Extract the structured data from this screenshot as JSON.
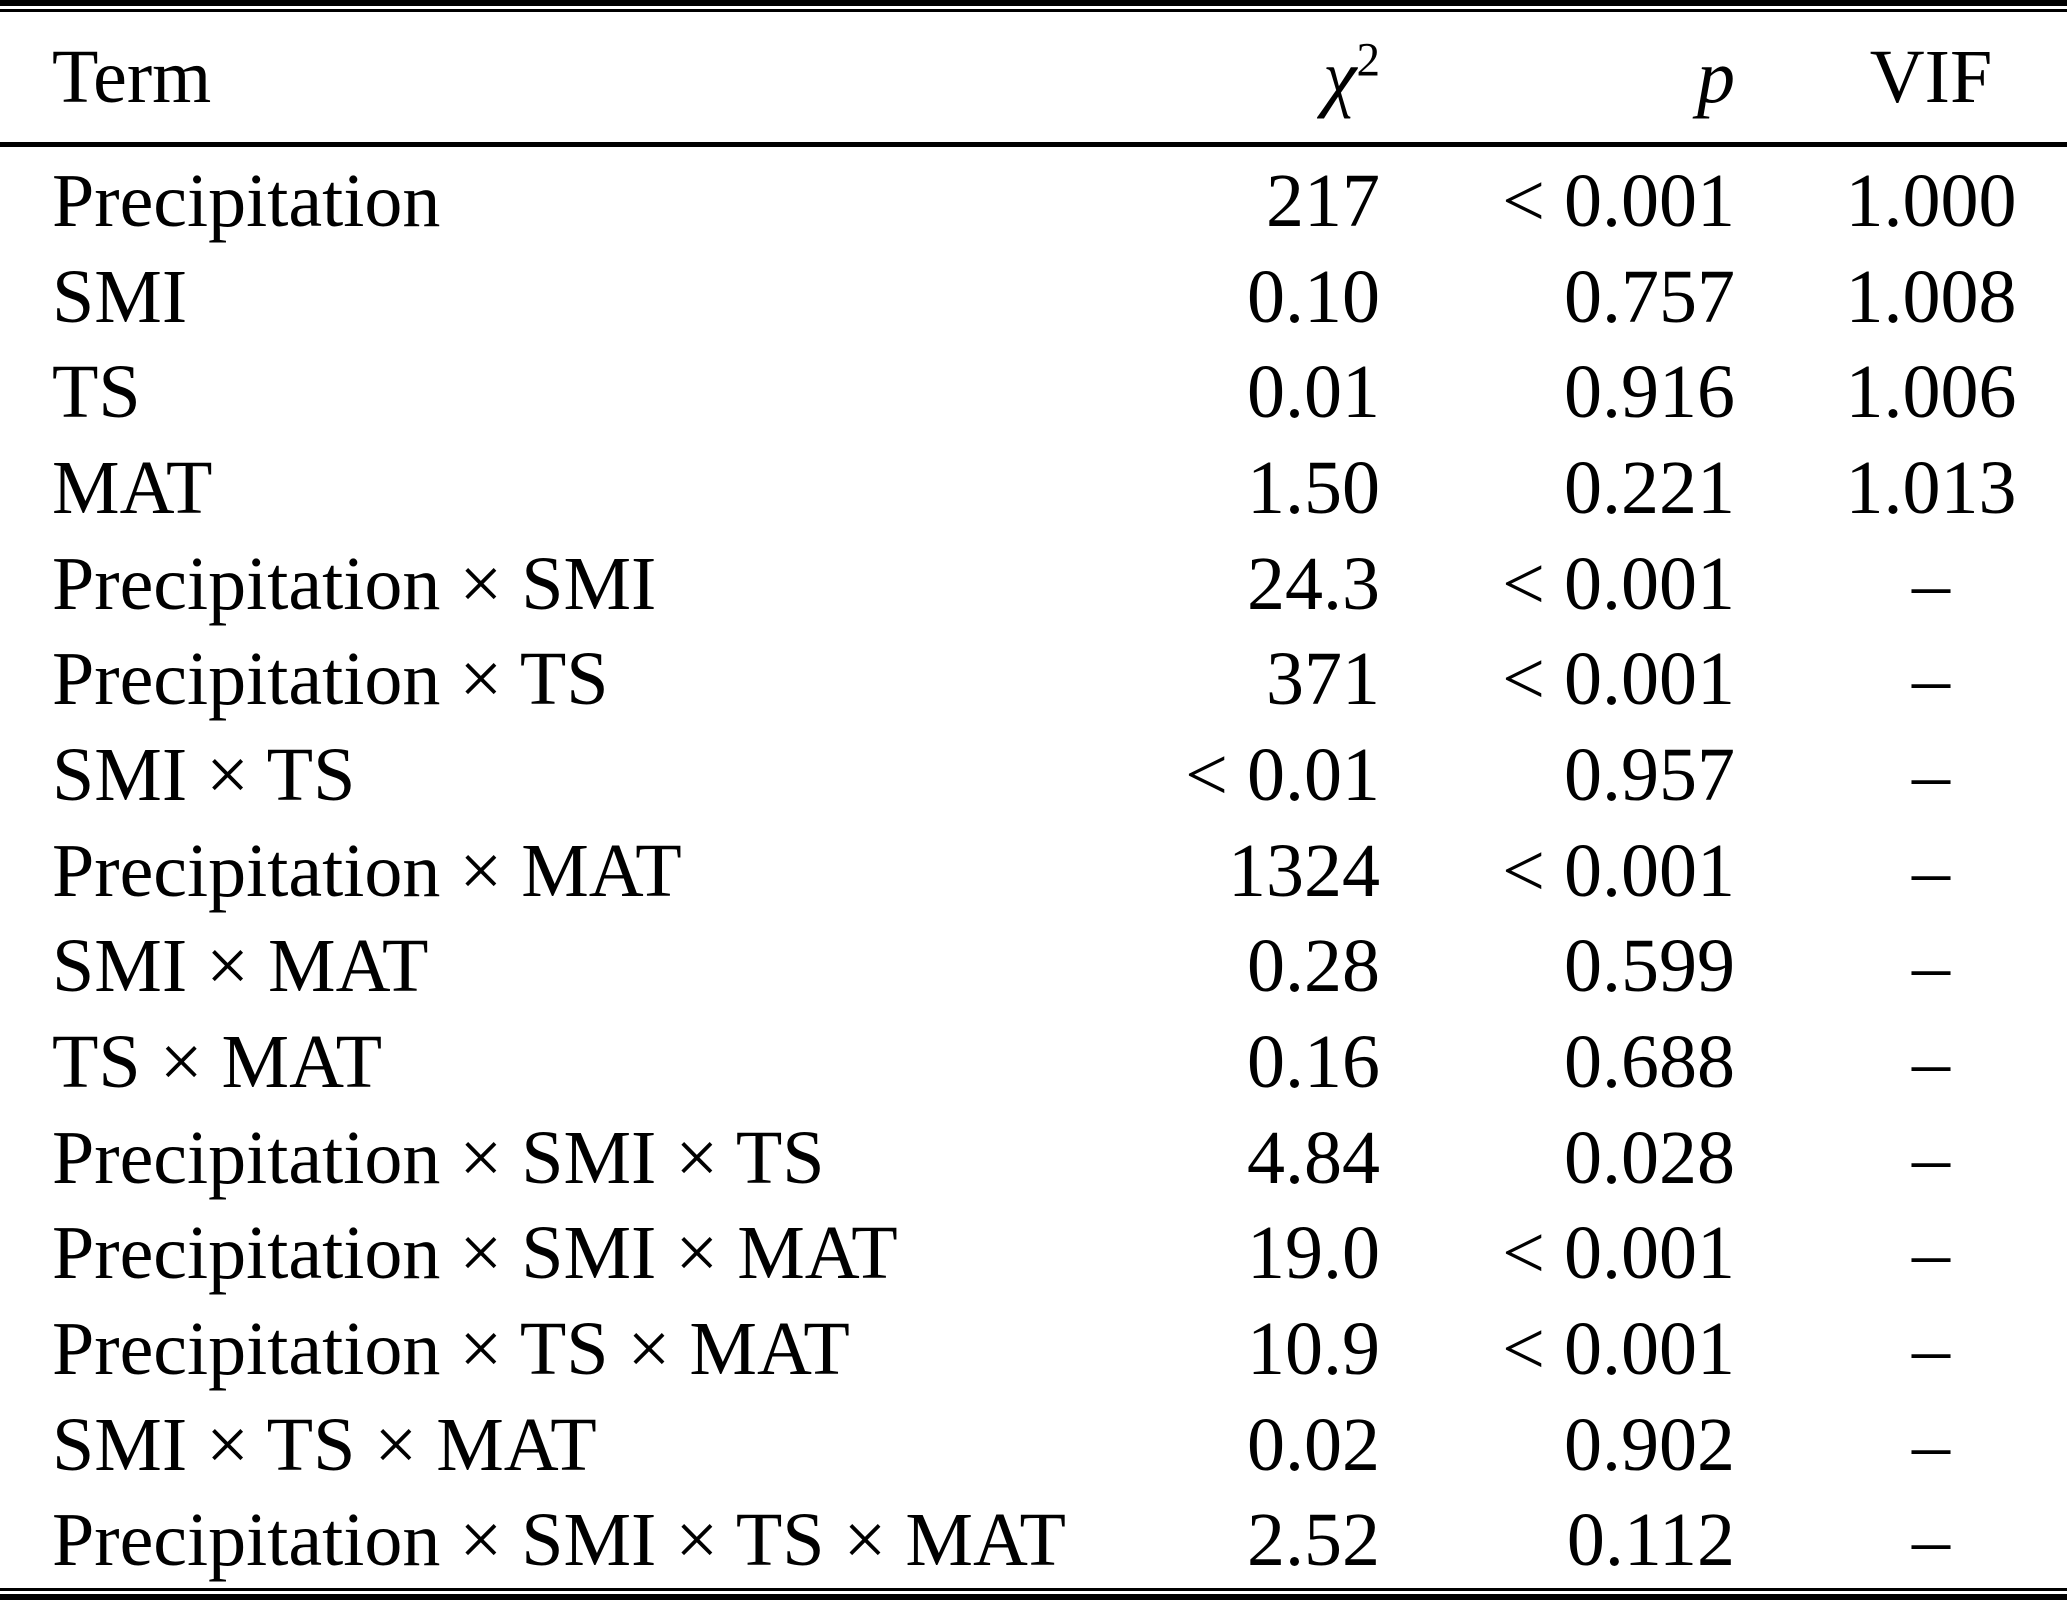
{
  "table": {
    "title_semantic": "ANOVA terms with chi-square, p-value and VIF",
    "columns": {
      "term": "Term",
      "chi_base": "χ",
      "chi_sup": "2",
      "p": "p",
      "vif": "VIF"
    },
    "rows": [
      {
        "term": "Precipitation",
        "chi2": "217",
        "p": "< 0.001",
        "vif": "1.000"
      },
      {
        "term": "SMI",
        "chi2": "0.10",
        "p": "0.757",
        "vif": "1.008"
      },
      {
        "term": "TS",
        "chi2": "0.01",
        "p": "0.916",
        "vif": "1.006"
      },
      {
        "term": "MAT",
        "chi2": "1.50",
        "p": "0.221",
        "vif": "1.013"
      },
      {
        "term": "Precipitation × SMI",
        "chi2": "24.3",
        "p": "< 0.001",
        "vif": "–"
      },
      {
        "term": "Precipitation × TS",
        "chi2": "371",
        "p": "< 0.001",
        "vif": "–"
      },
      {
        "term": "SMI × TS",
        "chi2": "< 0.01",
        "p": "0.957",
        "vif": "–"
      },
      {
        "term": "Precipitation × MAT",
        "chi2": "1324",
        "p": "< 0.001",
        "vif": "–"
      },
      {
        "term": "SMI × MAT",
        "chi2": "0.28",
        "p": "0.599",
        "vif": "–"
      },
      {
        "term": "TS × MAT",
        "chi2": "0.16",
        "p": "0.688",
        "vif": "–"
      },
      {
        "term": "Precipitation × SMI × TS",
        "chi2": "4.84",
        "p": "0.028",
        "vif": "–"
      },
      {
        "term": "Precipitation × SMI × MAT",
        "chi2": "19.0",
        "p": "< 0.001",
        "vif": "–"
      },
      {
        "term": "Precipitation × TS × MAT",
        "chi2": "10.9",
        "p": "< 0.001",
        "vif": "–"
      },
      {
        "term": "SMI × TS × MAT",
        "chi2": "0.02",
        "p": "0.902",
        "vif": "–"
      },
      {
        "term": "Precipitation × SMI × TS × MAT",
        "chi2": "2.52",
        "p": "0.112",
        "vif": "–"
      }
    ]
  }
}
